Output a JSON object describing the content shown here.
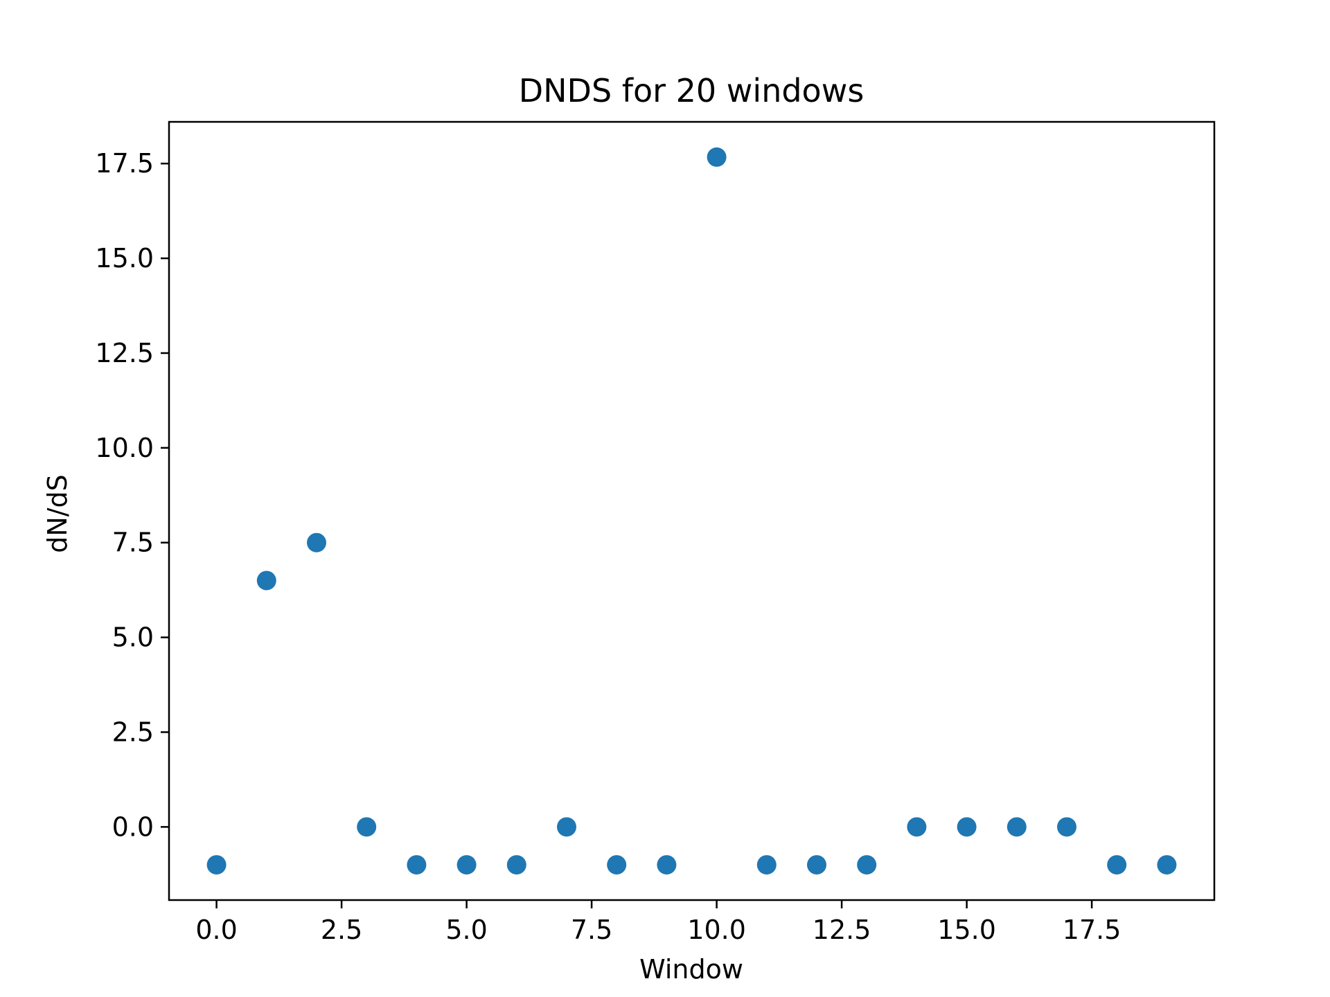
{
  "chart_data": {
    "type": "scatter",
    "title": "DNDS for 20 windows",
    "xlabel": "Window",
    "ylabel": "dN/dS",
    "xlim": [
      -0.95,
      19.95
    ],
    "ylim": [
      -1.93,
      18.6
    ],
    "xticks": [
      0.0,
      2.5,
      5.0,
      7.5,
      10.0,
      12.5,
      15.0,
      17.5
    ],
    "xtick_labels": [
      "0.0",
      "2.5",
      "5.0",
      "7.5",
      "10.0",
      "12.5",
      "15.0",
      "17.5"
    ],
    "yticks": [
      0.0,
      2.5,
      5.0,
      7.5,
      10.0,
      12.5,
      15.0,
      17.5
    ],
    "ytick_labels": [
      "0.0",
      "2.5",
      "5.0",
      "7.5",
      "10.0",
      "12.5",
      "15.0",
      "17.5"
    ],
    "grid": false,
    "legend": false,
    "marker_color": "#1f77b4",
    "series": [
      {
        "x": [
          0,
          1,
          2,
          3,
          4,
          5,
          6,
          7,
          8,
          9,
          10,
          11,
          12,
          13,
          14,
          15,
          16,
          17,
          18,
          19
        ],
        "y": [
          -1,
          6.5,
          7.5,
          0,
          -1,
          -1,
          -1,
          0,
          -1,
          -1,
          17.67,
          -1,
          -1,
          -1,
          0,
          0,
          0,
          0,
          -1,
          -1
        ]
      }
    ]
  }
}
